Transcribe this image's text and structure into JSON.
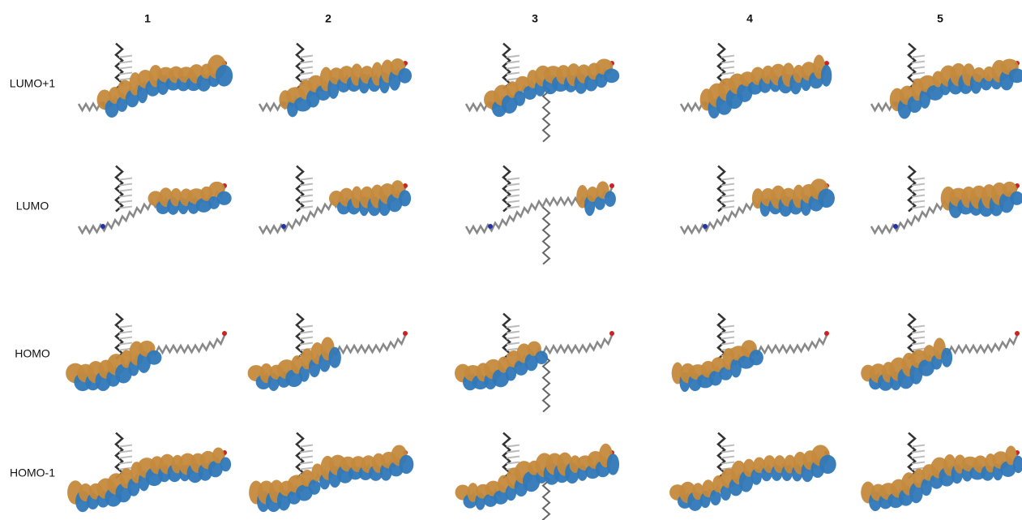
{
  "figure": {
    "columns": [
      "1",
      "2",
      "3",
      "4",
      "5"
    ],
    "rows": [
      "LUMO+1",
      "LUMO",
      "HOMO",
      "HOMO-1"
    ]
  }
}
